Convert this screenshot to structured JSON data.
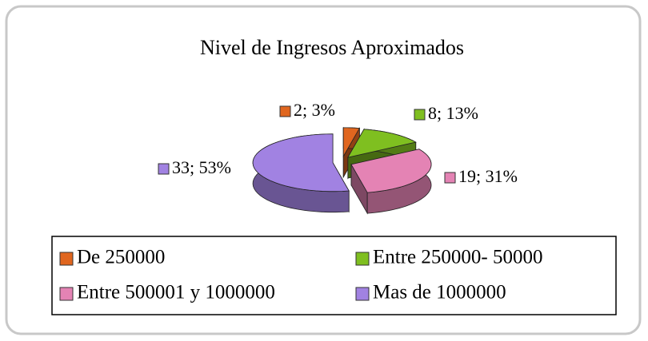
{
  "chart_data": {
    "type": "pie",
    "title": "Nivel de Ingresos Aproximados",
    "categories": [
      "De 250000",
      "Entre 250000- 50000",
      "Entre 500001 y 1000000",
      "Mas de 1000000"
    ],
    "values": [
      2,
      8,
      19,
      33
    ],
    "value_labels": [
      "2; 3%",
      "8; 13%",
      "19; 31%",
      "33; 53%"
    ],
    "colors": [
      "#e0661f",
      "#7fbf20",
      "#e483b4",
      "#a182e2"
    ],
    "legend": "bottom"
  }
}
